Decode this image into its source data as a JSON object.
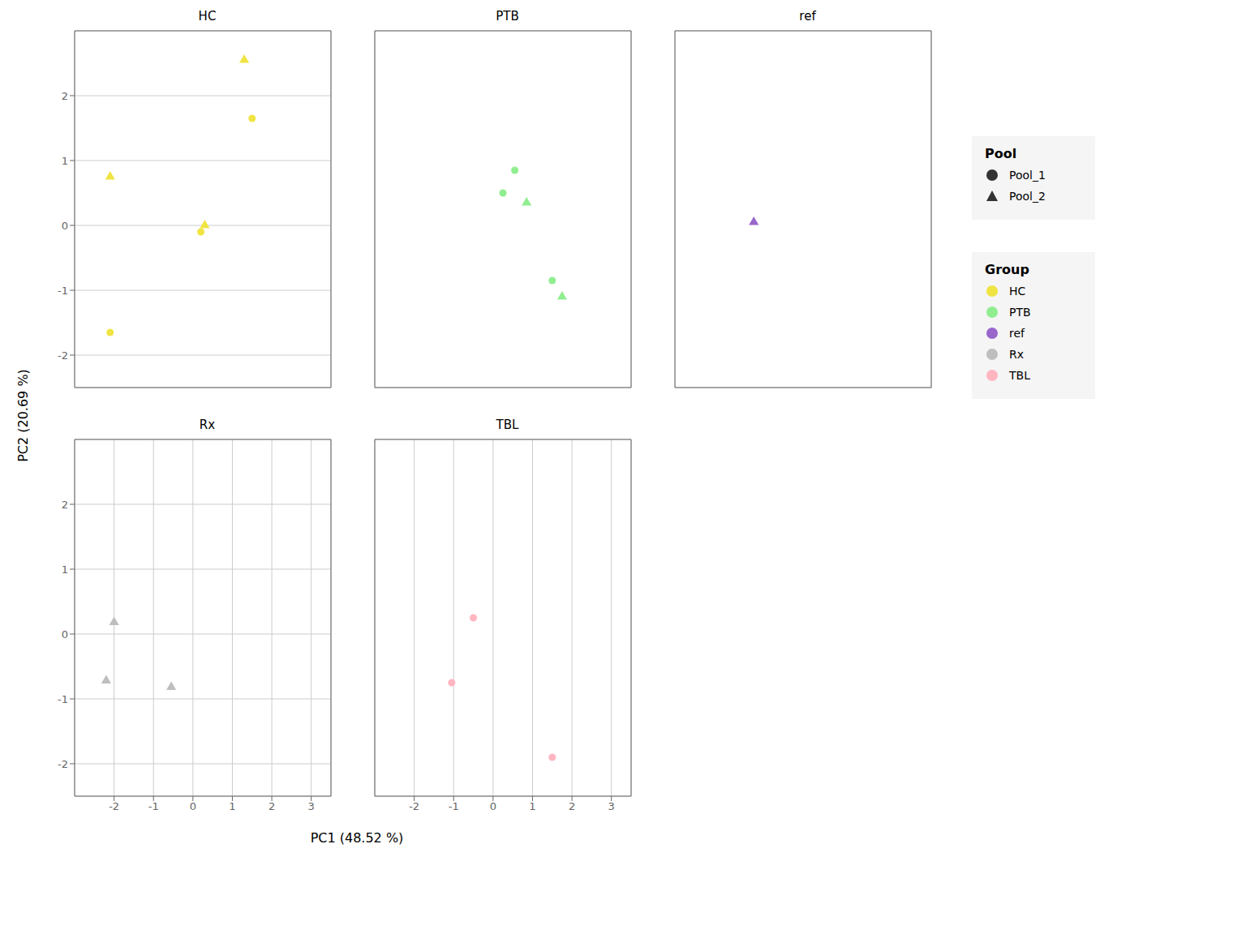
{
  "chart_data": {
    "type": "scatter",
    "xlabel": "PC1 (48.52 %)",
    "ylabel": "PC2 (20.69 %)",
    "xlim": [
      -3.0,
      3.5
    ],
    "ylim": [
      -2.5,
      3.0
    ],
    "xticks": [
      -2,
      -1,
      0,
      1,
      2,
      3
    ],
    "yticks": [
      -2,
      -1,
      0,
      1,
      2
    ],
    "grid": true,
    "legends": [
      {
        "title": "Pool",
        "entries": [
          {
            "name": "Pool_1",
            "marker": "circle",
            "color": "#333333"
          },
          {
            "name": "Pool_2",
            "marker": "triangle",
            "color": "#333333"
          }
        ]
      },
      {
        "title": "Group",
        "entries": [
          {
            "name": "HC",
            "marker": "circle",
            "color": "#F0E442"
          },
          {
            "name": "PTB",
            "marker": "circle",
            "color": "#90EE90"
          },
          {
            "name": "ref",
            "marker": "circle",
            "color": "#9966CC"
          },
          {
            "name": "Rx",
            "marker": "circle",
            "color": "#BEBEBE"
          },
          {
            "name": "TBL",
            "marker": "circle",
            "color": "#FFB6C1"
          }
        ]
      }
    ],
    "panels": [
      {
        "title": "HC",
        "tick_labels": "y",
        "points": [
          {
            "x": 1.3,
            "y": 2.55,
            "pool": "Pool_2",
            "group": "HC"
          },
          {
            "x": 1.5,
            "y": 1.65,
            "pool": "Pool_1",
            "group": "HC"
          },
          {
            "x": 0.2,
            "y": -0.1,
            "pool": "Pool_1",
            "group": "HC"
          },
          {
            "x": 0.3,
            "y": 0.0,
            "pool": "Pool_2",
            "group": "HC"
          },
          {
            "x": -2.1,
            "y": 0.75,
            "pool": "Pool_2",
            "group": "HC"
          },
          {
            "x": -2.1,
            "y": -1.65,
            "pool": "Pool_1",
            "group": "HC"
          }
        ]
      },
      {
        "title": "PTB",
        "tick_labels": false,
        "points": [
          {
            "x": 0.55,
            "y": 0.85,
            "pool": "Pool_1",
            "group": "PTB"
          },
          {
            "x": 0.25,
            "y": 0.5,
            "pool": "Pool_1",
            "group": "PTB"
          },
          {
            "x": 0.85,
            "y": 0.35,
            "pool": "Pool_2",
            "group": "PTB"
          },
          {
            "x": 1.5,
            "y": -0.85,
            "pool": "Pool_1",
            "group": "PTB"
          },
          {
            "x": 1.75,
            "y": -1.1,
            "pool": "Pool_2",
            "group": "PTB"
          }
        ]
      },
      {
        "title": "ref",
        "tick_labels": false,
        "points": [
          {
            "x": -1.0,
            "y": 0.05,
            "pool": "Pool_2",
            "group": "ref"
          }
        ]
      },
      {
        "title": "Rx",
        "points": [
          {
            "x": -2.0,
            "y": 0.18,
            "pool": "Pool_2",
            "group": "Rx"
          },
          {
            "x": -2.2,
            "y": -0.72,
            "pool": "Pool_2",
            "group": "Rx"
          },
          {
            "x": -0.55,
            "y": -0.82,
            "pool": "Pool_2",
            "group": "Rx"
          }
        ]
      },
      {
        "title": "TBL",
        "tick_labels": "x",
        "points": [
          {
            "x": -0.5,
            "y": 0.25,
            "pool": "Pool_1",
            "group": "TBL"
          },
          {
            "x": -1.05,
            "y": -0.75,
            "pool": "Pool_1",
            "group": "TBL"
          },
          {
            "x": 1.5,
            "y": -1.9,
            "pool": "Pool_1",
            "group": "TBL"
          }
        ]
      }
    ]
  }
}
